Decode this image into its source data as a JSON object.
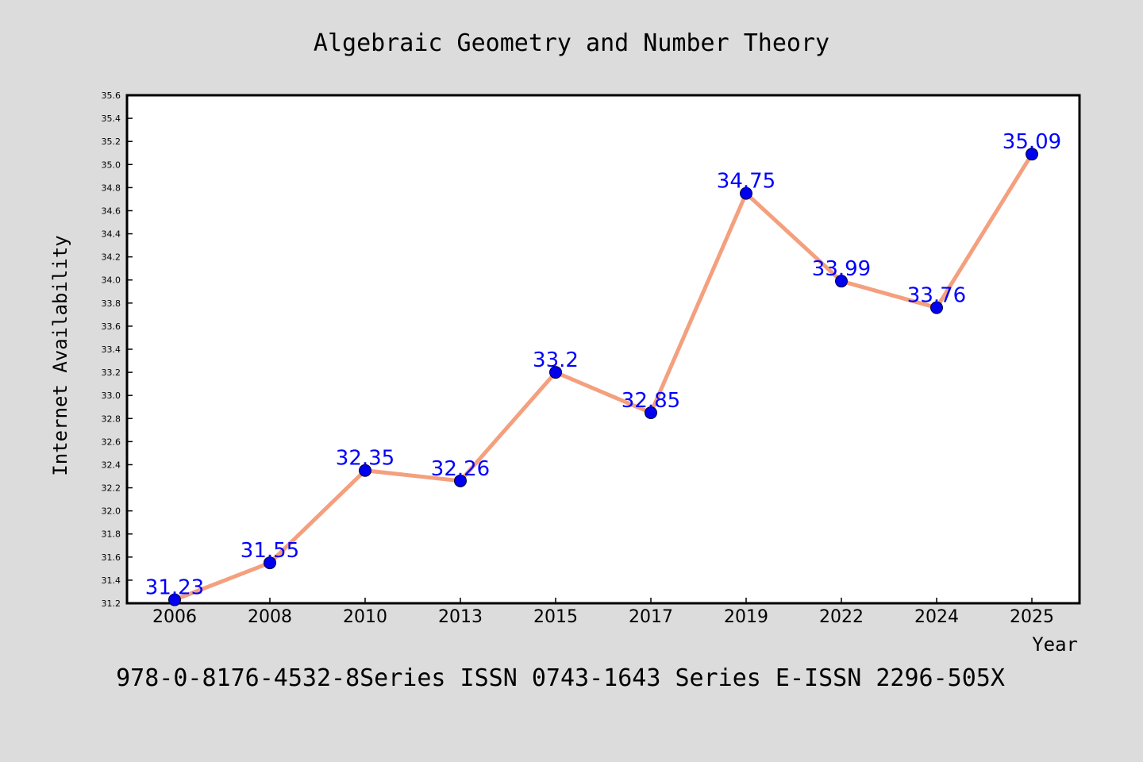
{
  "chart_data": {
    "type": "line",
    "title": "Algebraic Geometry and Number Theory",
    "xlabel": "Year",
    "ylabel": "Internet Availability",
    "categories": [
      "2006",
      "2008",
      "2010",
      "2013",
      "2015",
      "2017",
      "2019",
      "2022",
      "2024",
      "2025"
    ],
    "values": [
      31.23,
      31.55,
      32.35,
      32.26,
      33.2,
      32.85,
      34.75,
      33.99,
      33.76,
      35.09
    ],
    "data_labels": [
      "31.23",
      "31.55",
      "32.35",
      "32.26",
      "33.2",
      "32.85",
      "34.75",
      "33.99",
      "33.76",
      "35.09"
    ],
    "ylim": [
      31.2,
      35.6
    ],
    "yticks": [
      "31.2",
      "31.4",
      "31.6",
      "31.8",
      "32.0",
      "32.2",
      "32.4",
      "32.6",
      "32.8",
      "33.0",
      "33.2",
      "33.4",
      "33.6",
      "33.8",
      "34.0",
      "34.2",
      "34.4",
      "34.6",
      "34.8",
      "35.0",
      "35.2",
      "35.4",
      "35.6"
    ],
    "grid": false,
    "legend": "none",
    "line_color": "#f4a07e",
    "marker_color": "#0000ee",
    "label_color": "#0000ff"
  },
  "footer": "978-0-8176-4532-8Series ISSN 0743-1643 Series E-ISSN 2296-505X"
}
